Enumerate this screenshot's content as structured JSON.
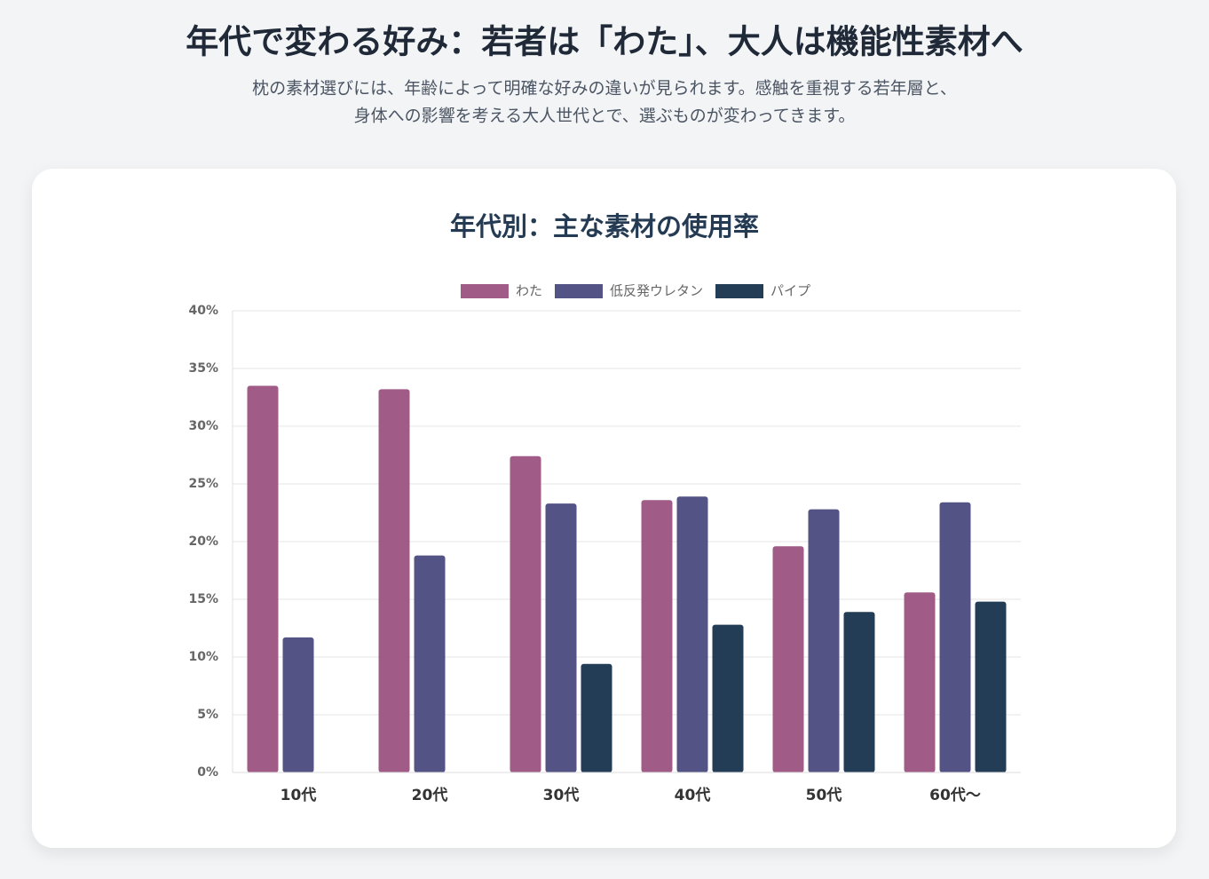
{
  "header": {
    "title": "年代で変わる好み：若者は「わた」、大人は機能性素材へ",
    "subtitle_lines": [
      "枕の素材選びには、年齢によって明確な好みの違いが見られます。感触を重視する若年層と、",
      "身体への影響を考える大人世代とで、選ぶものが変わってきます。"
    ]
  },
  "chart_data": {
    "type": "bar",
    "title": "年代別：主な素材の使用率",
    "categories": [
      "10代",
      "20代",
      "30代",
      "40代",
      "50代",
      "60代〜"
    ],
    "series": [
      {
        "name": "わた",
        "color": "#a05c87",
        "values": [
          33.5,
          33.2,
          27.4,
          23.6,
          19.6,
          15.6
        ]
      },
      {
        "name": "低反発ウレタン",
        "color": "#545385",
        "values": [
          11.7,
          18.8,
          23.3,
          23.9,
          22.8,
          23.4
        ]
      },
      {
        "name": "パイプ",
        "color": "#243d57",
        "values": [
          0,
          0,
          9.4,
          12.8,
          13.9,
          14.8
        ]
      }
    ],
    "ylim": [
      0,
      40
    ],
    "yticks": [
      {
        "value": 0,
        "label": "0%"
      },
      {
        "value": 5,
        "label": "5%"
      },
      {
        "value": 10,
        "label": "10%"
      },
      {
        "value": 15,
        "label": "15%"
      },
      {
        "value": 20,
        "label": "20%"
      },
      {
        "value": 25,
        "label": "25%"
      },
      {
        "value": 30,
        "label": "30%"
      },
      {
        "value": 35,
        "label": "35%"
      },
      {
        "value": 40,
        "label": "40%"
      }
    ],
    "grid": true,
    "legend": "top"
  }
}
